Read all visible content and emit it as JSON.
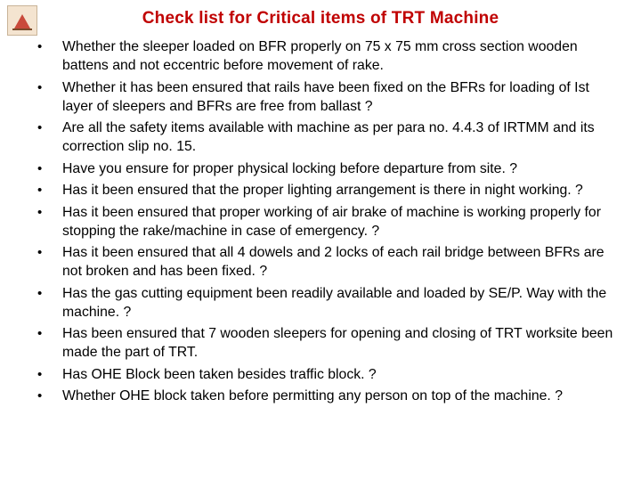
{
  "title": "Check list for Critical items of TRT Machine",
  "title_color": "#c00000",
  "text_color": "#000000",
  "background_color": "#ffffff",
  "logo_bg": "#f4e4d0",
  "logo_border": "#c9b498",
  "logo_accent": "#c94a3b",
  "font_family": "Arial",
  "title_fontsize": 19,
  "body_fontsize": 15.8,
  "line_height": 21,
  "bullet_char": "•",
  "items": [
    "Whether the sleeper loaded on BFR properly on 75 x 75 mm cross section wooden battens and not eccentric before movement of rake.",
    "Whether it has been ensured that rails have been fixed on the BFRs for loading of Ist layer of sleepers and BFRs are free from ballast ?",
    "Are all the safety items available with machine as per para no. 4.4.3 of IRTMM and its correction slip no. 15.",
    "Have you ensure for proper physical locking before departure from site. ?",
    "Has it been ensured that the proper lighting arrangement is there in night working. ?",
    "Has it been ensured that proper working of air brake of machine is working properly for stopping the rake/machine in case of emergency. ?",
    "Has it been ensured that all 4 dowels and 2 locks of each rail bridge between BFRs are not broken and has been fixed. ?",
    "Has the gas cutting equipment been readily available and loaded by SE/P. Way with the machine. ?",
    "Has been ensured that 7 wooden sleepers for opening and closing of TRT worksite been made the part of TRT.",
    "Has OHE Block been taken besides traffic block. ?",
    "Whether OHE block taken before permitting any person on top of the machine. ?"
  ]
}
